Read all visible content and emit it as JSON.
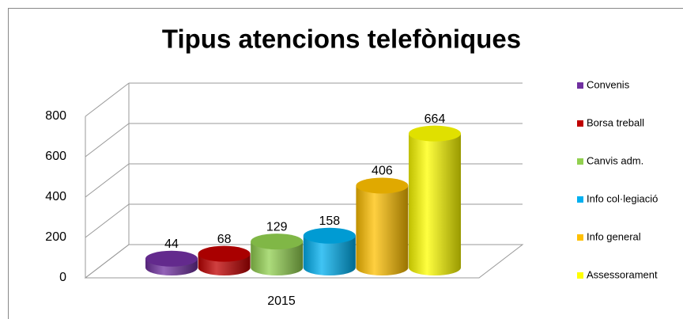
{
  "chart_data": {
    "type": "bar3d",
    "title": "Tipus atencions telefòniques",
    "categories": [
      "2015"
    ],
    "series": [
      {
        "name": "Convenis",
        "color": "#7030a0",
        "values": [
          44
        ]
      },
      {
        "name": "Borsa treball",
        "color": "#c00000",
        "values": [
          68
        ]
      },
      {
        "name": "Canvis adm.",
        "color": "#92d050",
        "values": [
          129
        ]
      },
      {
        "name": "Info col·legiació",
        "color": "#00b0f0",
        "values": [
          158
        ]
      },
      {
        "name": "Info general",
        "color": "#ffc000",
        "values": [
          406
        ]
      },
      {
        "name": "Assessorament",
        "color": "#ffff00",
        "values": [
          664
        ]
      }
    ],
    "ylim": [
      0,
      800
    ],
    "yticks": [
      0,
      200,
      400,
      600,
      800
    ],
    "grid": true,
    "legend": "right"
  }
}
